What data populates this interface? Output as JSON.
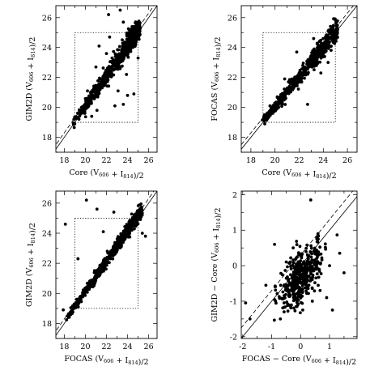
{
  "chart_data": [
    {
      "type": "scatter",
      "xlabel": "Core (V606 + I814)/2",
      "ylabel": "GIM2D (V606 + I814)/2",
      "xlim": [
        17.2,
        26.8
      ],
      "ylim": [
        17.0,
        26.8
      ],
      "xticks": [
        18,
        20,
        22,
        24,
        26
      ],
      "yticks": [
        18,
        20,
        22,
        24,
        26
      ],
      "reference_lines": [
        {
          "style": "solid",
          "slope": 1,
          "intercept": 0
        },
        {
          "style": "dashed",
          "slope": 1,
          "intercept": 0.3
        }
      ],
      "dotted_box": {
        "x": [
          19,
          25
        ],
        "y": [
          19,
          25
        ]
      },
      "trend": {
        "x_range": [
          18.8,
          25.2
        ],
        "slope": 1.0,
        "offset": 0.1,
        "scatter": 0.35,
        "count": 600
      },
      "outliers": [
        {
          "x": 23.3,
          "y": 26.5
        },
        {
          "x": 22.2,
          "y": 26.2
        },
        {
          "x": 23.6,
          "y": 25.7
        },
        {
          "x": 20.2,
          "y": 21.1
        },
        {
          "x": 21.0,
          "y": 22.7
        },
        {
          "x": 22.8,
          "y": 20.1
        },
        {
          "x": 23.6,
          "y": 20.2
        },
        {
          "x": 24.0,
          "y": 20.8
        },
        {
          "x": 24.6,
          "y": 20.9
        },
        {
          "x": 21.3,
          "y": 24.1
        },
        {
          "x": 22.3,
          "y": 24.7
        },
        {
          "x": 23.9,
          "y": 22.2
        },
        {
          "x": 23.1,
          "y": 21.1
        },
        {
          "x": 21.1,
          "y": 19.8
        },
        {
          "x": 20.6,
          "y": 19.4
        },
        {
          "x": 22.0,
          "y": 23.6
        },
        {
          "x": 25.0,
          "y": 23.3
        }
      ]
    },
    {
      "type": "scatter",
      "xlabel": "Core (V606 + I814)/2",
      "ylabel": "FOCAS (V606 + I814)/2",
      "xlim": [
        17.2,
        26.8
      ],
      "ylim": [
        17.0,
        26.8
      ],
      "xticks": [
        18,
        20,
        22,
        24,
        26
      ],
      "yticks": [
        18,
        20,
        22,
        24,
        26
      ],
      "reference_lines": [
        {
          "style": "solid",
          "slope": 1,
          "intercept": 0
        },
        {
          "style": "dashed",
          "slope": 1,
          "intercept": 0.3
        }
      ],
      "dotted_box": {
        "x": [
          19,
          25
        ],
        "y": [
          19,
          25
        ]
      },
      "trend": {
        "x_range": [
          18.8,
          25.2
        ],
        "slope": 1.0,
        "offset": 0.05,
        "scatter": 0.3,
        "count": 600
      },
      "outliers": [
        {
          "x": 19.8,
          "y": 19.6
        },
        {
          "x": 20.3,
          "y": 20.0
        },
        {
          "x": 22.7,
          "y": 20.2
        },
        {
          "x": 23.2,
          "y": 24.6
        },
        {
          "x": 21.8,
          "y": 23.7
        },
        {
          "x": 23.8,
          "y": 22.3
        },
        {
          "x": 24.4,
          "y": 23.0
        },
        {
          "x": 20.8,
          "y": 21.9
        }
      ]
    },
    {
      "type": "scatter",
      "xlabel": "FOCAS (V606 + I814)/2",
      "ylabel": "GIM2D (V606 + I814)/2",
      "xlim": [
        17.2,
        26.8
      ],
      "ylim": [
        17.0,
        26.8
      ],
      "xticks": [
        18,
        20,
        22,
        24,
        26
      ],
      "yticks": [
        18,
        20,
        22,
        24,
        26
      ],
      "reference_lines": [
        {
          "style": "solid",
          "slope": 1,
          "intercept": 0
        },
        {
          "style": "dashed",
          "slope": 1,
          "intercept": 0.3
        }
      ],
      "dotted_box": {
        "x": [
          19,
          25
        ],
        "y": [
          19,
          25
        ]
      },
      "trend": {
        "x_range": [
          18.2,
          25.4
        ],
        "slope": 1.0,
        "offset": 0.15,
        "scatter": 0.22,
        "count": 650
      },
      "outliers": [
        {
          "x": 18.1,
          "y": 24.6
        },
        {
          "x": 20.1,
          "y": 26.2
        },
        {
          "x": 21.1,
          "y": 25.6
        },
        {
          "x": 22.7,
          "y": 25.4
        },
        {
          "x": 18.9,
          "y": 19.0
        },
        {
          "x": 17.9,
          "y": 18.9
        },
        {
          "x": 25.7,
          "y": 23.8
        },
        {
          "x": 25.4,
          "y": 24.0
        },
        {
          "x": 24.9,
          "y": 25.4
        },
        {
          "x": 19.3,
          "y": 22.3
        },
        {
          "x": 21.7,
          "y": 24.1
        }
      ]
    },
    {
      "type": "scatter",
      "xlabel": "FOCAS − Core (V606 + I814)/2",
      "ylabel": "GIM2D − Core (V606 + I814)/2",
      "xlim": [
        -2.05,
        1.95
      ],
      "ylim": [
        -2.05,
        2.1
      ],
      "xticks": [
        -2,
        -1,
        0,
        1
      ],
      "yticks": [
        -2,
        -1,
        0,
        1,
        2
      ],
      "reference_lines": [
        {
          "style": "solid",
          "slope": 1,
          "intercept": 0
        },
        {
          "style": "dashed",
          "slope": 1,
          "intercept": 0.3
        }
      ],
      "cluster": {
        "center": [
          0.0,
          -0.3
        ],
        "sigma": [
          0.35,
          0.42
        ],
        "correlation": 0.55,
        "count": 450
      },
      "outliers": [
        {
          "x": 0.35,
          "y": 1.85
        },
        {
          "x": -0.9,
          "y": 0.6
        },
        {
          "x": 1.5,
          "y": -0.2
        },
        {
          "x": -1.9,
          "y": -1.05
        },
        {
          "x": -1.75,
          "y": -1.5
        },
        {
          "x": 1.1,
          "y": -1.25
        },
        {
          "x": 1.0,
          "y": 0.0
        },
        {
          "x": -1.2,
          "y": -0.55
        },
        {
          "x": 0.6,
          "y": 0.9
        },
        {
          "x": 1.35,
          "y": 0.35
        },
        {
          "x": -0.7,
          "y": -1.5
        },
        {
          "x": 0.9,
          "y": -0.9
        }
      ]
    }
  ]
}
